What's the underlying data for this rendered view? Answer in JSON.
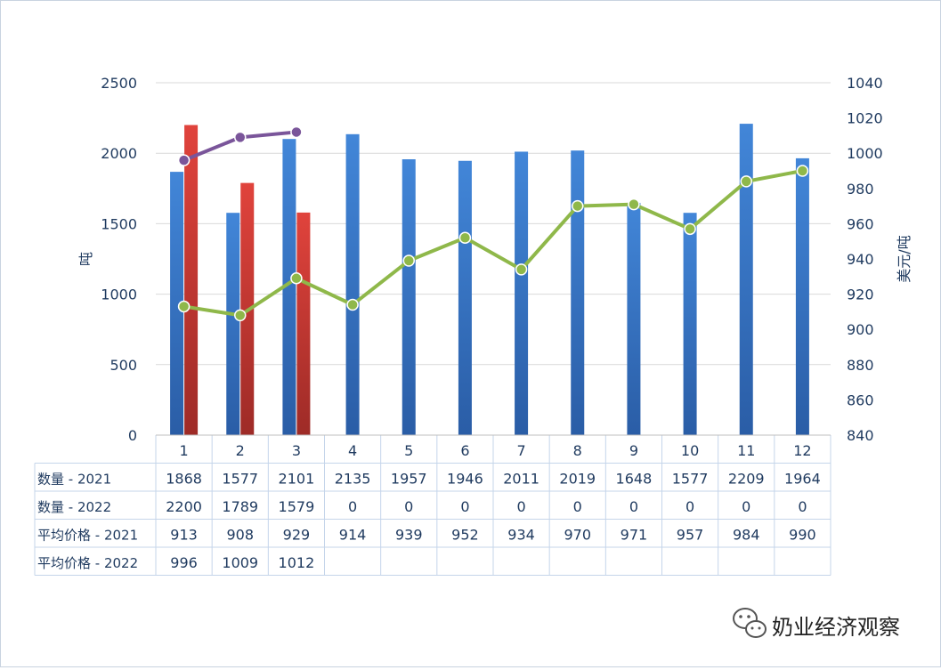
{
  "chart_data": {
    "type": "bar",
    "categories": [
      "1",
      "2",
      "3",
      "4",
      "5",
      "6",
      "7",
      "8",
      "9",
      "10",
      "11",
      "12"
    ],
    "series": [
      {
        "name": "数量 - 2021",
        "kind": "bar",
        "axis": "left",
        "values": [
          1868,
          1577,
          2101,
          2135,
          1957,
          1946,
          2011,
          2019,
          1648,
          1577,
          2209,
          1964
        ]
      },
      {
        "name": "数量 - 2022",
        "kind": "bar",
        "axis": "left",
        "values": [
          2200,
          1789,
          1579,
          0,
          0,
          0,
          0,
          0,
          0,
          0,
          0,
          0
        ]
      },
      {
        "name": "平均价格 - 2021",
        "kind": "line",
        "axis": "right",
        "values": [
          913,
          908,
          929,
          914,
          939,
          952,
          934,
          970,
          971,
          957,
          984,
          990
        ]
      },
      {
        "name": "平均价格 - 2022",
        "kind": "line",
        "axis": "right",
        "values": [
          996,
          1009,
          1012,
          null,
          null,
          null,
          null,
          null,
          null,
          null,
          null,
          null
        ]
      }
    ],
    "ylabel": "吨",
    "y2label": "美元/吨",
    "ylim": [
      0,
      2500
    ],
    "yticks": [
      0,
      500,
      1000,
      1500,
      2000,
      2500
    ],
    "y2lim": [
      840,
      1040
    ],
    "y2ticks": [
      840,
      860,
      880,
      900,
      920,
      940,
      960,
      980,
      1000,
      1020,
      1040
    ],
    "grid": true,
    "legend": "data-table-bottom",
    "colors": {
      "bar2021": "#3b7fd0",
      "bar2022": "#d23a35",
      "line2021": "#8fb84a",
      "line2022": "#7a559a",
      "axisText": "#1f3a5f",
      "grid": "#d9d9d9",
      "tableBorder": "#c5d5ea"
    }
  },
  "watermark": {
    "text": "奶业经济观察",
    "icon": "wechat-icon"
  }
}
